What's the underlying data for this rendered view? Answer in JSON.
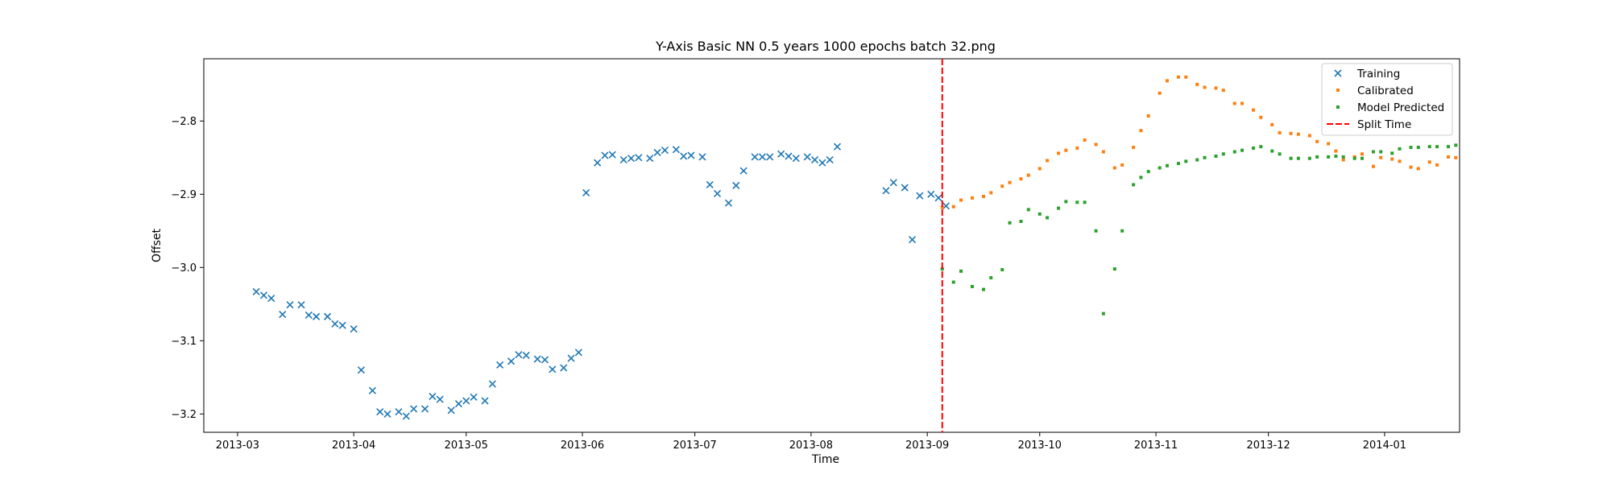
{
  "chart_data": {
    "type": "scatter",
    "title": "Y-Axis Basic NN 0.5 years 1000 epochs batch 32.png",
    "xlabel": "Time",
    "ylabel": "Offset",
    "xlim": [
      "2013-02-20",
      "2014-01-21"
    ],
    "ylim": [
      -3.225,
      -2.715
    ],
    "x_ticks": [
      "2013-03",
      "2013-04",
      "2013-05",
      "2013-06",
      "2013-07",
      "2013-08",
      "2013-09",
      "2013-10",
      "2013-11",
      "2013-12",
      "2014-01"
    ],
    "y_ticks": [
      -2.8,
      -2.9,
      -3.0,
      -3.1,
      -3.2
    ],
    "legend_position": "top-right",
    "grid": false,
    "split_time": "2013-09-05",
    "series": [
      {
        "name": "Training",
        "marker": "x",
        "color": "#1f77b4",
        "points": [
          [
            "2013-03-06",
            -3.033
          ],
          [
            "2013-03-08",
            -3.038
          ],
          [
            "2013-03-10",
            -3.042
          ],
          [
            "2013-03-13",
            -3.064
          ],
          [
            "2013-03-15",
            -3.051
          ],
          [
            "2013-03-18",
            -3.051
          ],
          [
            "2013-03-20",
            -3.065
          ],
          [
            "2013-03-22",
            -3.067
          ],
          [
            "2013-03-25",
            -3.067
          ],
          [
            "2013-03-27",
            -3.077
          ],
          [
            "2013-03-29",
            -3.079
          ],
          [
            "2013-04-01",
            -3.084
          ],
          [
            "2013-04-03",
            -3.14
          ],
          [
            "2013-04-06",
            -3.168
          ],
          [
            "2013-04-08",
            -3.197
          ],
          [
            "2013-04-10",
            -3.2
          ],
          [
            "2013-04-13",
            -3.197
          ],
          [
            "2013-04-15",
            -3.203
          ],
          [
            "2013-04-17",
            -3.193
          ],
          [
            "2013-04-20",
            -3.193
          ],
          [
            "2013-04-22",
            -3.176
          ],
          [
            "2013-04-24",
            -3.18
          ],
          [
            "2013-04-27",
            -3.195
          ],
          [
            "2013-04-29",
            -3.186
          ],
          [
            "2013-05-01",
            -3.182
          ],
          [
            "2013-05-03",
            -3.177
          ],
          [
            "2013-05-06",
            -3.182
          ],
          [
            "2013-05-08",
            -3.159
          ],
          [
            "2013-05-10",
            -3.133
          ],
          [
            "2013-05-13",
            -3.128
          ],
          [
            "2013-05-15",
            -3.119
          ],
          [
            "2013-05-17",
            -3.12
          ],
          [
            "2013-05-20",
            -3.125
          ],
          [
            "2013-05-22",
            -3.126
          ],
          [
            "2013-05-24",
            -3.139
          ],
          [
            "2013-05-27",
            -3.137
          ],
          [
            "2013-05-29",
            -3.124
          ],
          [
            "2013-05-31",
            -3.116
          ],
          [
            "2013-06-02",
            -2.898
          ],
          [
            "2013-06-05",
            -2.857
          ],
          [
            "2013-06-07",
            -2.847
          ],
          [
            "2013-06-09",
            -2.846
          ],
          [
            "2013-06-12",
            -2.853
          ],
          [
            "2013-06-14",
            -2.851
          ],
          [
            "2013-06-16",
            -2.85
          ],
          [
            "2013-06-19",
            -2.851
          ],
          [
            "2013-06-21",
            -2.843
          ],
          [
            "2013-06-23",
            -2.84
          ],
          [
            "2013-06-26",
            -2.839
          ],
          [
            "2013-06-28",
            -2.848
          ],
          [
            "2013-06-30",
            -2.847
          ],
          [
            "2013-07-03",
            -2.849
          ],
          [
            "2013-07-05",
            -2.887
          ],
          [
            "2013-07-07",
            -2.899
          ],
          [
            "2013-07-10",
            -2.912
          ],
          [
            "2013-07-12",
            -2.888
          ],
          [
            "2013-07-14",
            -2.868
          ],
          [
            "2013-07-17",
            -2.849
          ],
          [
            "2013-07-19",
            -2.849
          ],
          [
            "2013-07-21",
            -2.849
          ],
          [
            "2013-07-24",
            -2.845
          ],
          [
            "2013-07-26",
            -2.848
          ],
          [
            "2013-07-28",
            -2.851
          ],
          [
            "2013-07-31",
            -2.849
          ],
          [
            "2013-08-02",
            -2.853
          ],
          [
            "2013-08-04",
            -2.857
          ],
          [
            "2013-08-06",
            -2.853
          ],
          [
            "2013-08-08",
            -2.835
          ],
          [
            "2013-08-21",
            -2.895
          ],
          [
            "2013-08-23",
            -2.884
          ],
          [
            "2013-08-26",
            -2.891
          ],
          [
            "2013-08-28",
            -2.962
          ],
          [
            "2013-08-30",
            -2.902
          ],
          [
            "2013-09-02",
            -2.9
          ],
          [
            "2013-09-04",
            -2.905
          ],
          [
            "2013-09-06",
            -2.916
          ]
        ]
      },
      {
        "name": "Calibrated",
        "marker": "dot",
        "color": "#ff7f0e",
        "points": [
          [
            "2013-09-05",
            -2.918
          ],
          [
            "2013-09-08",
            -2.917
          ],
          [
            "2013-09-10",
            -2.908
          ],
          [
            "2013-09-13",
            -2.905
          ],
          [
            "2013-09-16",
            -2.903
          ],
          [
            "2013-09-18",
            -2.898
          ],
          [
            "2013-09-21",
            -2.889
          ],
          [
            "2013-09-23",
            -2.884
          ],
          [
            "2013-09-26",
            -2.879
          ],
          [
            "2013-09-28",
            -2.874
          ],
          [
            "2013-10-01",
            -2.865
          ],
          [
            "2013-10-03",
            -2.854
          ],
          [
            "2013-10-06",
            -2.844
          ],
          [
            "2013-10-08",
            -2.84
          ],
          [
            "2013-10-11",
            -2.837
          ],
          [
            "2013-10-13",
            -2.826
          ],
          [
            "2013-10-16",
            -2.832
          ],
          [
            "2013-10-18",
            -2.842
          ],
          [
            "2013-10-21",
            -2.864
          ],
          [
            "2013-10-23",
            -2.86
          ],
          [
            "2013-10-26",
            -2.836
          ],
          [
            "2013-10-28",
            -2.813
          ],
          [
            "2013-10-30",
            -2.793
          ],
          [
            "2013-11-02",
            -2.762
          ],
          [
            "2013-11-04",
            -2.745
          ],
          [
            "2013-11-07",
            -2.74
          ],
          [
            "2013-11-09",
            -2.74
          ],
          [
            "2013-11-12",
            -2.75
          ],
          [
            "2013-11-14",
            -2.754
          ],
          [
            "2013-11-17",
            -2.755
          ],
          [
            "2013-11-19",
            -2.758
          ],
          [
            "2013-11-22",
            -2.776
          ],
          [
            "2013-11-24",
            -2.776
          ],
          [
            "2013-11-27",
            -2.785
          ],
          [
            "2013-11-29",
            -2.795
          ],
          [
            "2013-12-02",
            -2.805
          ],
          [
            "2013-12-04",
            -2.816
          ],
          [
            "2013-12-07",
            -2.817
          ],
          [
            "2013-12-09",
            -2.818
          ],
          [
            "2013-12-12",
            -2.82
          ],
          [
            "2013-12-14",
            -2.828
          ],
          [
            "2013-12-17",
            -2.831
          ],
          [
            "2013-12-19",
            -2.841
          ],
          [
            "2013-12-21",
            -2.853
          ],
          [
            "2013-12-24",
            -2.849
          ],
          [
            "2013-12-26",
            -2.845
          ],
          [
            "2013-12-29",
            -2.862
          ],
          [
            "2013-12-31",
            -2.85
          ],
          [
            "2014-01-03",
            -2.852
          ],
          [
            "2014-01-05",
            -2.855
          ],
          [
            "2014-01-08",
            -2.863
          ],
          [
            "2014-01-10",
            -2.865
          ],
          [
            "2014-01-13",
            -2.856
          ],
          [
            "2014-01-15",
            -2.86
          ],
          [
            "2014-01-18",
            -2.849
          ],
          [
            "2014-01-20",
            -2.85
          ]
        ]
      },
      {
        "name": "Model Predicted",
        "marker": "dot",
        "color": "#2ca02c",
        "points": [
          [
            "2013-09-05",
            -3.002
          ],
          [
            "2013-09-08",
            -3.02
          ],
          [
            "2013-09-10",
            -3.005
          ],
          [
            "2013-09-13",
            -3.026
          ],
          [
            "2013-09-16",
            -3.03
          ],
          [
            "2013-09-18",
            -3.014
          ],
          [
            "2013-09-21",
            -3.003
          ],
          [
            "2013-09-23",
            -2.939
          ],
          [
            "2013-09-26",
            -2.937
          ],
          [
            "2013-09-28",
            -2.921
          ],
          [
            "2013-10-01",
            -2.927
          ],
          [
            "2013-10-03",
            -2.932
          ],
          [
            "2013-10-06",
            -2.919
          ],
          [
            "2013-10-08",
            -2.91
          ],
          [
            "2013-10-11",
            -2.911
          ],
          [
            "2013-10-13",
            -2.911
          ],
          [
            "2013-10-16",
            -2.95
          ],
          [
            "2013-10-18",
            -3.063
          ],
          [
            "2013-10-21",
            -3.002
          ],
          [
            "2013-10-23",
            -2.95
          ],
          [
            "2013-10-26",
            -2.887
          ],
          [
            "2013-10-28",
            -2.877
          ],
          [
            "2013-10-30",
            -2.869
          ],
          [
            "2013-11-02",
            -2.864
          ],
          [
            "2013-11-04",
            -2.861
          ],
          [
            "2013-11-07",
            -2.858
          ],
          [
            "2013-11-09",
            -2.855
          ],
          [
            "2013-11-12",
            -2.853
          ],
          [
            "2013-11-14",
            -2.85
          ],
          [
            "2013-11-17",
            -2.848
          ],
          [
            "2013-11-19",
            -2.845
          ],
          [
            "2013-11-22",
            -2.842
          ],
          [
            "2013-11-24",
            -2.84
          ],
          [
            "2013-11-27",
            -2.837
          ],
          [
            "2013-11-29",
            -2.835
          ],
          [
            "2013-12-02",
            -2.841
          ],
          [
            "2013-12-04",
            -2.845
          ],
          [
            "2013-12-07",
            -2.851
          ],
          [
            "2013-12-09",
            -2.851
          ],
          [
            "2013-12-12",
            -2.851
          ],
          [
            "2013-12-14",
            -2.849
          ],
          [
            "2013-12-17",
            -2.849
          ],
          [
            "2013-12-19",
            -2.848
          ],
          [
            "2013-12-21",
            -2.849
          ],
          [
            "2013-12-24",
            -2.851
          ],
          [
            "2013-12-26",
            -2.851
          ],
          [
            "2013-12-29",
            -2.842
          ],
          [
            "2013-12-31",
            -2.842
          ],
          [
            "2014-01-03",
            -2.844
          ],
          [
            "2014-01-05",
            -2.838
          ],
          [
            "2014-01-08",
            -2.836
          ],
          [
            "2014-01-10",
            -2.836
          ],
          [
            "2014-01-13",
            -2.835
          ],
          [
            "2014-01-15",
            -2.835
          ],
          [
            "2014-01-18",
            -2.835
          ],
          [
            "2014-01-20",
            -2.833
          ]
        ]
      },
      {
        "name": "Split Time",
        "marker": "dashed-line",
        "color": "#ff0000"
      }
    ]
  }
}
